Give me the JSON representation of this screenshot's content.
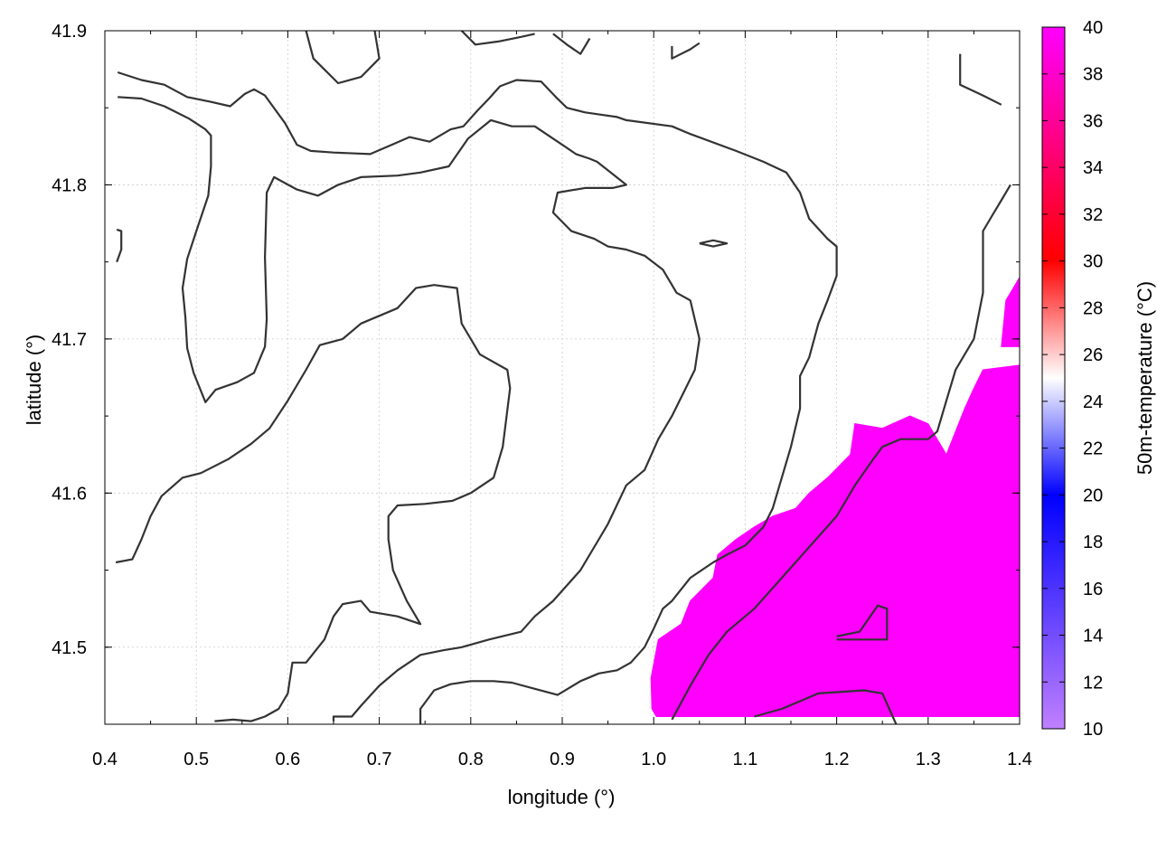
{
  "chart_data": {
    "type": "heatmap",
    "title": "",
    "xlabel": "longitude (°)",
    "ylabel": "latitude (°)",
    "colorbar_label": "50m-temperature (°C)",
    "xlim": [
      0.4,
      1.4
    ],
    "ylim": [
      41.45,
      41.9
    ],
    "xticks": [
      "0.4",
      "0.5",
      "0.6",
      "0.7",
      "0.8",
      "0.9",
      "1.0",
      "1.1",
      "1.2",
      "1.3",
      "1.4"
    ],
    "yticks": [
      "41.5",
      "41.6",
      "41.7",
      "41.8",
      "41.9"
    ],
    "colorbar_ticks": [
      "10",
      "12",
      "14",
      "16",
      "18",
      "20",
      "22",
      "24",
      "26",
      "28",
      "30",
      "32",
      "34",
      "36",
      "38",
      "40"
    ],
    "colorbar_range": [
      10,
      40
    ],
    "colorbar_colors": [
      "#c080ff",
      "#0000ff",
      "#ffffff",
      "#ff0000",
      "#ff00ff"
    ],
    "fill_color": "#ff00ff",
    "contour_color": "#333333",
    "grid": true,
    "filled_region": {
      "value": 40,
      "boundary": [
        [
          1.003,
          41.455
        ],
        [
          0.998,
          41.46
        ],
        [
          0.997,
          41.48
        ],
        [
          1.005,
          41.505
        ],
        [
          1.03,
          41.515
        ],
        [
          1.04,
          41.53
        ],
        [
          1.065,
          41.545
        ],
        [
          1.07,
          41.56
        ],
        [
          1.09,
          41.57
        ],
        [
          1.11,
          41.578
        ],
        [
          1.13,
          41.585
        ],
        [
          1.155,
          41.59
        ],
        [
          1.17,
          41.6
        ],
        [
          1.19,
          41.61
        ],
        [
          1.215,
          41.625
        ],
        [
          1.22,
          41.645
        ],
        [
          1.25,
          41.642
        ],
        [
          1.28,
          41.65
        ],
        [
          1.3,
          41.645
        ],
        [
          1.31,
          41.635
        ],
        [
          1.32,
          41.625
        ],
        [
          1.34,
          41.655
        ],
        [
          1.35,
          41.668
        ],
        [
          1.36,
          41.68
        ],
        [
          1.4,
          41.683
        ],
        [
          1.4,
          41.455
        ]
      ]
    },
    "filled_region_2": {
      "value": 40,
      "boundary": [
        [
          1.38,
          41.695
        ],
        [
          1.385,
          41.725
        ],
        [
          1.39,
          41.73
        ],
        [
          1.4,
          41.74
        ],
        [
          1.4,
          41.695
        ]
      ]
    },
    "contours": [
      [
        [
          0.414,
          41.873
        ],
        [
          0.44,
          41.868
        ],
        [
          0.465,
          41.865
        ],
        [
          0.49,
          41.857
        ],
        [
          0.515,
          41.854
        ],
        [
          0.537,
          41.851
        ],
        [
          0.553,
          41.859
        ],
        [
          0.563,
          41.862
        ],
        [
          0.575,
          41.858
        ],
        [
          0.597,
          41.84
        ],
        [
          0.61,
          41.826
        ],
        [
          0.625,
          41.822
        ],
        [
          0.65,
          41.821
        ],
        [
          0.69,
          41.82
        ],
        [
          0.71,
          41.825
        ],
        [
          0.733,
          41.831
        ],
        [
          0.755,
          41.828
        ],
        [
          0.778,
          41.836
        ],
        [
          0.792,
          41.838
        ],
        [
          0.807,
          41.848
        ],
        [
          0.82,
          41.856
        ],
        [
          0.832,
          41.864
        ],
        [
          0.85,
          41.868
        ],
        [
          0.877,
          41.867
        ],
        [
          0.893,
          41.857
        ],
        [
          0.905,
          41.85
        ],
        [
          0.925,
          41.847
        ],
        [
          0.96,
          41.844
        ],
        [
          0.97,
          41.842
        ],
        [
          1.02,
          41.838
        ],
        [
          1.04,
          41.833
        ],
        [
          1.09,
          41.822
        ],
        [
          1.12,
          41.815
        ],
        [
          1.145,
          41.808
        ],
        [
          1.16,
          41.795
        ],
        [
          1.17,
          41.778
        ],
        [
          1.19,
          41.765
        ],
        [
          1.2,
          41.76
        ],
        [
          1.2,
          41.741
        ],
        [
          1.19,
          41.725
        ],
        [
          1.18,
          41.71
        ],
        [
          1.17,
          41.688
        ],
        [
          1.16,
          41.676
        ],
        [
          1.16,
          41.655
        ],
        [
          1.15,
          41.63
        ],
        [
          1.14,
          41.61
        ],
        [
          1.13,
          41.59
        ],
        [
          1.12,
          41.578
        ],
        [
          1.1,
          41.566
        ],
        [
          1.08,
          41.56
        ],
        [
          1.065,
          41.555
        ],
        [
          1.04,
          41.545
        ],
        [
          1.02,
          41.53
        ],
        [
          1.01,
          41.525
        ],
        [
          1.0,
          41.512
        ],
        [
          0.99,
          41.5
        ],
        [
          0.975,
          41.49
        ],
        [
          0.96,
          41.485
        ],
        [
          0.94,
          41.483
        ],
        [
          0.92,
          41.478
        ],
        [
          0.895,
          41.469
        ],
        [
          0.87,
          41.473
        ],
        [
          0.845,
          41.477
        ],
        [
          0.825,
          41.478
        ],
        [
          0.8,
          41.478
        ],
        [
          0.778,
          41.476
        ],
        [
          0.76,
          41.472
        ],
        [
          0.745,
          41.46
        ],
        [
          0.745,
          41.45
        ]
      ],
      [
        [
          0.414,
          41.857
        ],
        [
          0.44,
          41.856
        ],
        [
          0.465,
          41.851
        ],
        [
          0.492,
          41.843
        ],
        [
          0.51,
          41.836
        ],
        [
          0.516,
          41.832
        ],
        [
          0.516,
          41.812
        ],
        [
          0.513,
          41.793
        ],
        [
          0.5,
          41.77
        ],
        [
          0.49,
          41.752
        ],
        [
          0.485,
          41.733
        ],
        [
          0.488,
          41.714
        ],
        [
          0.49,
          41.694
        ],
        [
          0.497,
          41.678
        ],
        [
          0.51,
          41.659
        ],
        [
          0.521,
          41.667
        ],
        [
          0.545,
          41.672
        ],
        [
          0.563,
          41.678
        ],
        [
          0.575,
          41.695
        ],
        [
          0.577,
          41.713
        ],
        [
          0.575,
          41.753
        ],
        [
          0.577,
          41.795
        ],
        [
          0.585,
          41.805
        ],
        [
          0.61,
          41.797
        ],
        [
          0.633,
          41.793
        ],
        [
          0.655,
          41.8
        ],
        [
          0.68,
          41.805
        ],
        [
          0.72,
          41.806
        ],
        [
          0.745,
          41.808
        ],
        [
          0.776,
          41.812
        ],
        [
          0.797,
          41.83
        ],
        [
          0.822,
          41.842
        ],
        [
          0.845,
          41.838
        ],
        [
          0.87,
          41.838
        ],
        [
          0.9,
          41.826
        ],
        [
          0.915,
          41.82
        ],
        [
          0.93,
          41.817
        ],
        [
          0.938,
          41.815
        ],
        [
          0.953,
          41.808
        ],
        [
          0.97,
          41.8
        ],
        [
          0.955,
          41.798
        ],
        [
          0.925,
          41.798
        ],
        [
          0.895,
          41.795
        ],
        [
          0.89,
          41.782
        ],
        [
          0.91,
          41.77
        ],
        [
          0.935,
          41.765
        ],
        [
          0.95,
          41.76
        ],
        [
          0.97,
          41.758
        ],
        [
          0.99,
          41.754
        ],
        [
          1.01,
          41.745
        ],
        [
          1.025,
          41.73
        ],
        [
          1.04,
          41.725
        ],
        [
          1.05,
          41.7
        ],
        [
          1.045,
          41.68
        ],
        [
          1.02,
          41.65
        ],
        [
          1.005,
          41.635
        ],
        [
          0.99,
          41.615
        ],
        [
          0.97,
          41.605
        ],
        [
          0.95,
          41.58
        ],
        [
          0.94,
          41.57
        ],
        [
          0.92,
          41.55
        ],
        [
          0.89,
          41.53
        ],
        [
          0.87,
          41.52
        ],
        [
          0.855,
          41.51
        ],
        [
          0.82,
          41.505
        ],
        [
          0.79,
          41.5
        ],
        [
          0.77,
          41.498
        ],
        [
          0.745,
          41.495
        ],
        [
          0.72,
          41.485
        ],
        [
          0.7,
          41.475
        ],
        [
          0.68,
          41.462
        ],
        [
          0.67,
          41.455
        ],
        [
          0.65,
          41.455
        ],
        [
          0.65,
          41.452
        ]
      ],
      [
        [
          0.412,
          41.555
        ],
        [
          0.43,
          41.557
        ],
        [
          0.44,
          41.57
        ],
        [
          0.45,
          41.585
        ],
        [
          0.462,
          41.598
        ],
        [
          0.485,
          41.61
        ],
        [
          0.505,
          41.613
        ],
        [
          0.535,
          41.622
        ],
        [
          0.56,
          41.632
        ],
        [
          0.58,
          41.642
        ],
        [
          0.6,
          41.66
        ],
        [
          0.62,
          41.68
        ],
        [
          0.635,
          41.696
        ],
        [
          0.66,
          41.7
        ],
        [
          0.68,
          41.71
        ],
        [
          0.72,
          41.72
        ],
        [
          0.74,
          41.733
        ],
        [
          0.76,
          41.735
        ],
        [
          0.785,
          41.733
        ],
        [
          0.79,
          41.71
        ],
        [
          0.81,
          41.69
        ],
        [
          0.84,
          41.68
        ],
        [
          0.843,
          41.668
        ],
        [
          0.835,
          41.63
        ],
        [
          0.825,
          41.61
        ],
        [
          0.8,
          41.6
        ],
        [
          0.78,
          41.595
        ],
        [
          0.75,
          41.593
        ],
        [
          0.72,
          41.592
        ],
        [
          0.71,
          41.585
        ],
        [
          0.71,
          41.57
        ],
        [
          0.715,
          41.55
        ],
        [
          0.73,
          41.53
        ],
        [
          0.745,
          41.515
        ],
        [
          0.72,
          41.52
        ],
        [
          0.69,
          41.523
        ],
        [
          0.68,
          41.53
        ],
        [
          0.66,
          41.528
        ],
        [
          0.65,
          41.52
        ],
        [
          0.64,
          41.505
        ],
        [
          0.62,
          41.49
        ],
        [
          0.605,
          41.49
        ],
        [
          0.6,
          41.47
        ],
        [
          0.59,
          41.46
        ],
        [
          0.575,
          41.455
        ],
        [
          0.56,
          41.452
        ],
        [
          0.54,
          41.453
        ],
        [
          0.52,
          41.452
        ]
      ],
      [
        [
          1.02,
          41.453
        ],
        [
          1.04,
          41.475
        ],
        [
          1.06,
          41.495
        ],
        [
          1.08,
          41.51
        ],
        [
          1.11,
          41.525
        ],
        [
          1.14,
          41.545
        ],
        [
          1.17,
          41.565
        ],
        [
          1.2,
          41.585
        ],
        [
          1.21,
          41.595
        ],
        [
          1.22,
          41.605
        ],
        [
          1.24,
          41.622
        ],
        [
          1.25,
          41.63
        ],
        [
          1.27,
          41.635
        ],
        [
          1.3,
          41.635
        ],
        [
          1.31,
          41.64
        ],
        [
          1.32,
          41.66
        ],
        [
          1.33,
          41.68
        ],
        [
          1.34,
          41.69
        ],
        [
          1.35,
          41.7
        ],
        [
          1.36,
          41.73
        ],
        [
          1.36,
          41.75
        ],
        [
          1.36,
          41.76
        ],
        [
          1.36,
          41.77
        ],
        [
          1.37,
          41.78
        ],
        [
          1.38,
          41.79
        ],
        [
          1.39,
          41.8
        ]
      ],
      [
        [
          1.11,
          41.455
        ],
        [
          1.14,
          41.46
        ],
        [
          1.18,
          41.47
        ],
        [
          1.23,
          41.472
        ],
        [
          1.25,
          41.47
        ],
        [
          1.265,
          41.45
        ]
      ],
      [
        [
          1.2,
          41.507
        ],
        [
          1.225,
          41.51
        ],
        [
          1.245,
          41.527
        ],
        [
          1.255,
          41.525
        ],
        [
          1.255,
          41.505
        ],
        [
          1.2,
          41.505
        ]
      ],
      [
        [
          1.05,
          41.762
        ],
        [
          1.065,
          41.764
        ],
        [
          1.08,
          41.762
        ],
        [
          1.065,
          41.76
        ],
        [
          1.05,
          41.762
        ]
      ],
      [
        [
          0.62,
          41.9
        ],
        [
          0.628,
          41.882
        ],
        [
          0.655,
          41.866
        ],
        [
          0.68,
          41.87
        ],
        [
          0.7,
          41.882
        ],
        [
          0.695,
          41.9
        ]
      ],
      [
        [
          0.79,
          41.9
        ],
        [
          0.805,
          41.891
        ],
        [
          0.83,
          41.893
        ],
        [
          0.855,
          41.896
        ],
        [
          0.87,
          41.898
        ]
      ],
      [
        [
          0.89,
          41.898
        ],
        [
          0.905,
          41.891
        ],
        [
          0.92,
          41.885
        ],
        [
          0.93,
          41.895
        ]
      ],
      [
        [
          1.02,
          41.89
        ],
        [
          1.02,
          41.882
        ],
        [
          1.04,
          41.888
        ],
        [
          1.05,
          41.892
        ]
      ],
      [
        [
          1.335,
          41.885
        ],
        [
          1.335,
          41.865
        ],
        [
          1.36,
          41.858
        ],
        [
          1.38,
          41.852
        ]
      ],
      [
        [
          0.413,
          41.771
        ],
        [
          0.418,
          41.77
        ],
        [
          0.418,
          41.758
        ],
        [
          0.413,
          41.75
        ]
      ],
      [
        [
          0.413,
          41.555
        ],
        [
          0.413,
          41.555
        ]
      ]
    ]
  }
}
